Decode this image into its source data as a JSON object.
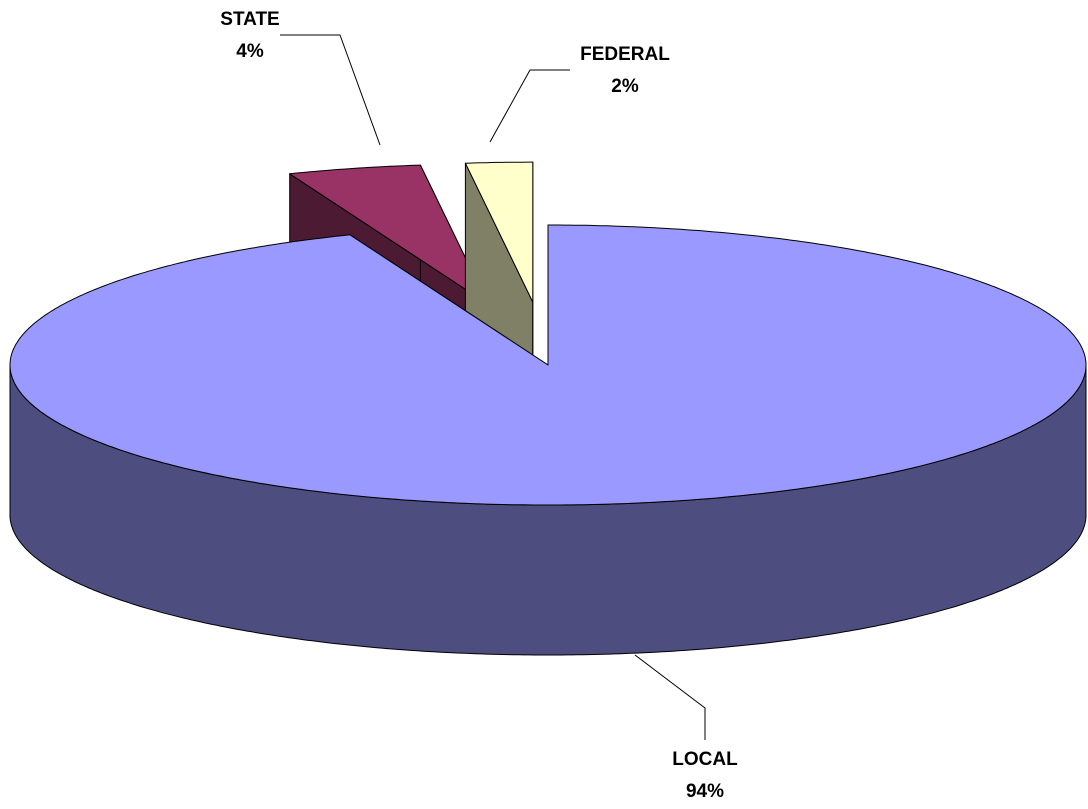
{
  "chart_data": {
    "type": "pie3d",
    "categories": [
      "LOCAL",
      "STATE",
      "FEDERAL"
    ],
    "values": [
      94,
      4,
      2
    ],
    "value_labels": [
      "94%",
      "4%",
      "2%"
    ],
    "colors": [
      "#9999ff",
      "#993366",
      "#ffffcc"
    ],
    "explode": [
      0,
      0.45,
      0.45
    ]
  }
}
